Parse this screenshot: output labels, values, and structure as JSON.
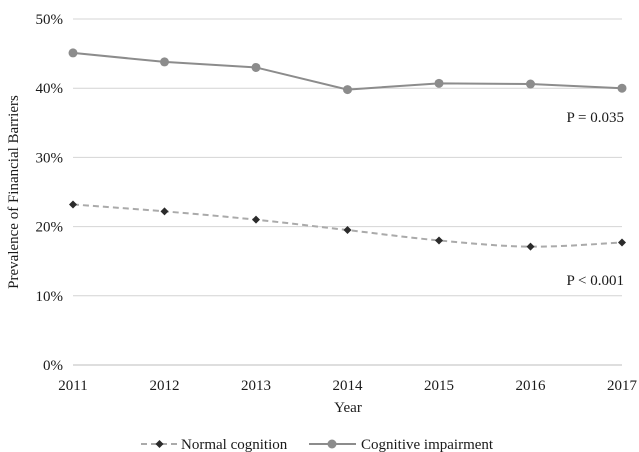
{
  "chart_data": {
    "type": "line",
    "title": "",
    "xlabel": "Year",
    "ylabel": "Prevalence of  Financial Barriers",
    "categories": [
      "2011",
      "2012",
      "2013",
      "2014",
      "2015",
      "2016",
      "2017"
    ],
    "yticks": [
      "0%",
      "10%",
      "20%",
      "30%",
      "40%",
      "50%"
    ],
    "ylim": [
      0,
      50
    ],
    "y_unit": "percent",
    "grid": "horizontal",
    "legend_position": "bottom",
    "series": [
      {
        "name": "Normal cognition",
        "values": [
          23.2,
          22.2,
          21.0,
          19.5,
          18.0,
          17.1,
          17.7
        ],
        "color": "#aaaaaa",
        "marker_color": "#2b2b2b",
        "line_style": "dashed",
        "marker": "diamond"
      },
      {
        "name": "Cognitive impairment",
        "values": [
          45.1,
          43.8,
          43.0,
          39.8,
          40.7,
          40.6,
          40.0
        ],
        "color": "#8c8c8c",
        "marker_color": "#8c8c8c",
        "line_style": "solid",
        "marker": "circle"
      }
    ],
    "annotations": [
      {
        "text": "P = 0.035",
        "series": "Cognitive impairment"
      },
      {
        "text": "P < 0.001",
        "series": "Normal cognition"
      }
    ]
  }
}
